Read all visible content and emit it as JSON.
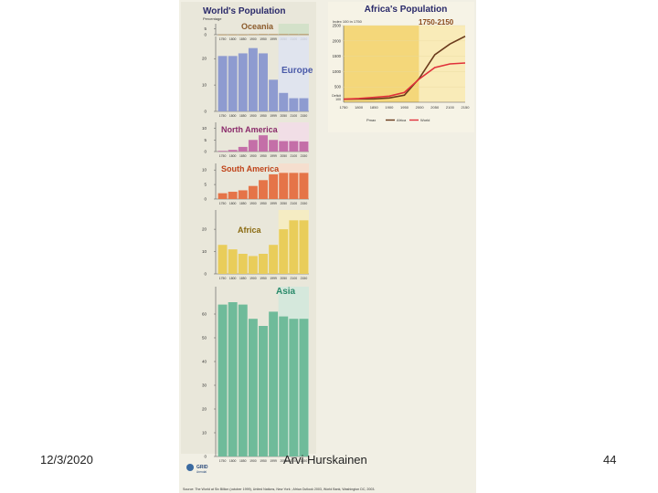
{
  "footer": {
    "date": "12/3/2020",
    "author": "Arvi Hurskainen",
    "page": "44"
  },
  "poster": {
    "left_title": "World's Population",
    "left_axis_label": "Percentage",
    "right_title": "Africa's Population",
    "right_subtitle": "1750-2150",
    "right_axis_label": "Index 100 in 1750",
    "right_axis_extra": [
      "Deficit",
      "100"
    ],
    "source": "Source: The World at Six Billion (october 1999), United Nations, New York ; Africa Outlook 2003, World Bank, Washington DC, 2003.",
    "logo_text": "GRID",
    "logo_subtext": "Arendal"
  },
  "chart_data": [
    {
      "type": "bar",
      "title": "Oceania",
      "color": "#b69058",
      "label_color": "#8a5a2a",
      "highlight": "#cde0c4",
      "categories": [
        "1750",
        "1800",
        "1850",
        "1900",
        "1950",
        "1999",
        "2050",
        "2100",
        "2150"
      ],
      "values": [
        0.2,
        0.2,
        0.2,
        0.4,
        0.5,
        0.5,
        0.5,
        0.5,
        0.5
      ],
      "yticks": [
        0,
        5
      ],
      "ylim": [
        0,
        6
      ]
    },
    {
      "type": "bar",
      "title": "Europe",
      "color": "#8e9bd0",
      "label_color": "#4a5aa8",
      "highlight": "#dde3f2",
      "categories": [
        "1750",
        "1800",
        "1850",
        "1900",
        "1950",
        "1999",
        "2050",
        "2100",
        "2150"
      ],
      "values": [
        21,
        21,
        22,
        24,
        22,
        12,
        7,
        5,
        5
      ],
      "yticks": [
        0,
        10,
        20
      ],
      "ylim": [
        0,
        27
      ]
    },
    {
      "type": "bar",
      "title": "North America",
      "color": "#c46fa8",
      "label_color": "#8a2a6a",
      "highlight": "#f2dce8",
      "categories": [
        "1750",
        "1800",
        "1850",
        "1900",
        "1950",
        "1999",
        "2050",
        "2100",
        "2150"
      ],
      "values": [
        0.3,
        0.7,
        2,
        5,
        7,
        5,
        4.5,
        4.5,
        4.3
      ],
      "yticks": [
        0,
        5,
        10
      ],
      "ylim": [
        0,
        11
      ]
    },
    {
      "type": "bar",
      "title": "South America",
      "color": "#e57448",
      "label_color": "#c0441a",
      "highlight": "#f8dccb",
      "categories": [
        "1750",
        "1800",
        "1850",
        "1900",
        "1950",
        "1999",
        "2050",
        "2100",
        "2150"
      ],
      "values": [
        2,
        2.5,
        3,
        4.5,
        6.5,
        8.5,
        9,
        9,
        9
      ],
      "yticks": [
        0,
        5,
        10
      ],
      "ylim": [
        0,
        11
      ]
    },
    {
      "type": "bar",
      "title": "Africa",
      "color": "#e9cd5a",
      "label_color": "#8a6a10",
      "highlight": "#f7eebd",
      "categories": [
        "1750",
        "1800",
        "1850",
        "1900",
        "1950",
        "1999",
        "2050",
        "2100",
        "2150"
      ],
      "values": [
        13,
        11,
        9,
        8,
        9,
        13,
        20,
        24,
        24
      ],
      "yticks": [
        0,
        10,
        20
      ],
      "ylim": [
        0,
        27
      ]
    },
    {
      "type": "bar",
      "title": "Asia",
      "color": "#6fbb9a",
      "label_color": "#2a8a6a",
      "highlight": "#cfe9dc",
      "categories": [
        "1750",
        "1800",
        "1850",
        "1900",
        "1950",
        "1999",
        "2050",
        "2100",
        "2150"
      ],
      "values": [
        64,
        65,
        64,
        58,
        55,
        61,
        59,
        58,
        58
      ],
      "yticks": [
        0,
        10,
        20,
        30,
        40,
        50,
        60
      ],
      "ylim": [
        0,
        70
      ]
    },
    {
      "type": "line",
      "title": "Africa's Population 1750-2150",
      "x": [
        1750,
        1800,
        1850,
        1900,
        1950,
        1999,
        2050,
        2100,
        2150
      ],
      "xticks": [
        1750,
        1800,
        1850,
        1900,
        1950,
        2000,
        2050,
        2100,
        2150
      ],
      "yticks": [
        500,
        1000,
        1500,
        2000,
        2500
      ],
      "ylim": [
        0,
        2500
      ],
      "series": [
        {
          "name": "Africa",
          "color": "#6a3a1c",
          "values": [
            100,
            105,
            110,
            140,
            230,
            780,
            1550,
            1900,
            2150
          ]
        },
        {
          "name": "World",
          "color": "#e0303a",
          "values": [
            100,
            120,
            160,
            200,
            320,
            760,
            1130,
            1250,
            1280
          ]
        }
      ],
      "legend": [
        "Africa",
        "World"
      ],
      "legend_prefix": "Pmax"
    }
  ]
}
